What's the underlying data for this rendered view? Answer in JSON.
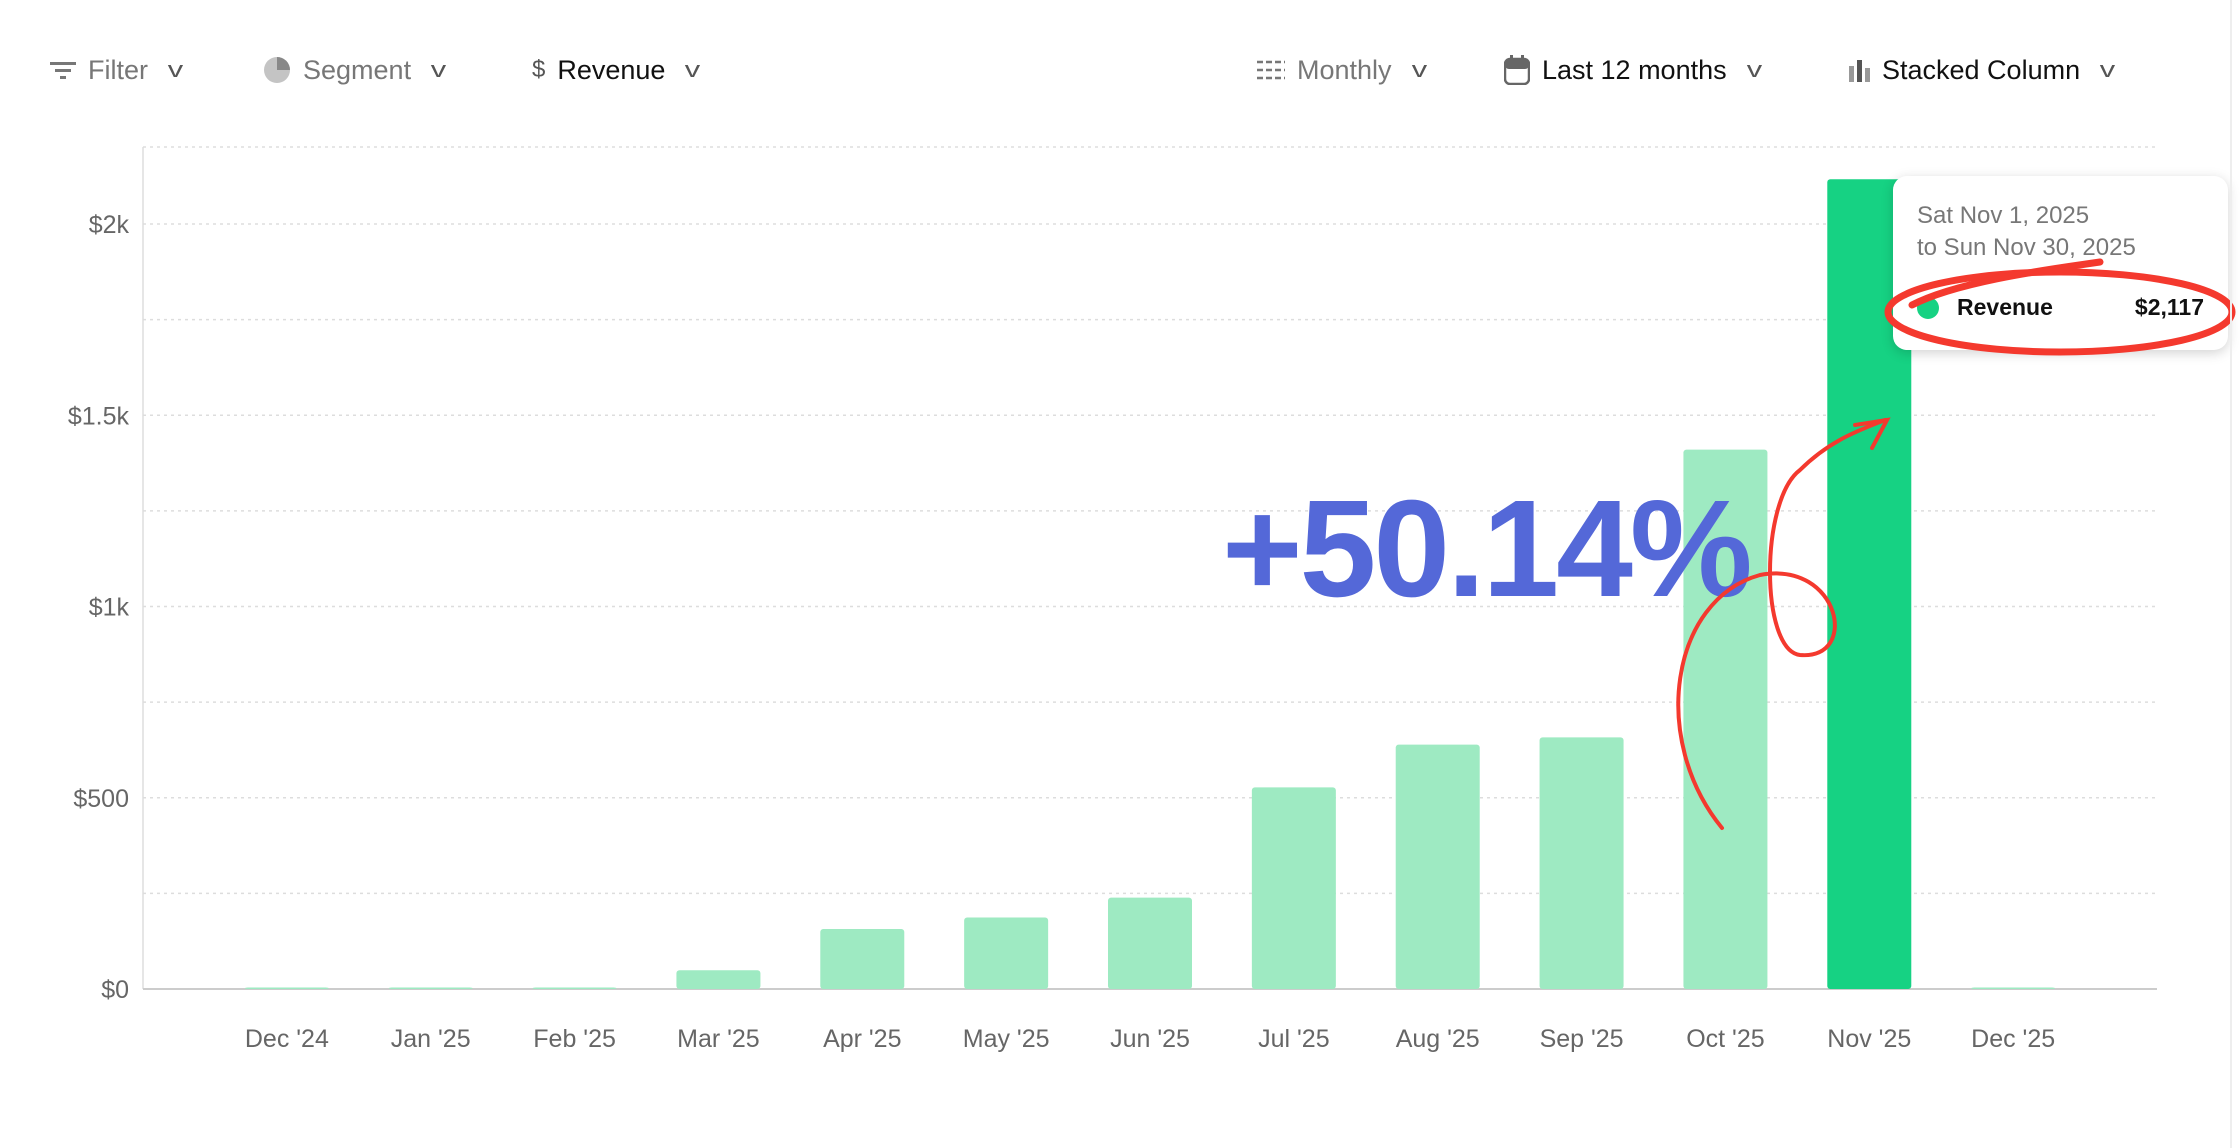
{
  "toolbar": {
    "filter": "Filter",
    "segment": "Segment",
    "metric": "Revenue",
    "interval": "Monthly",
    "range": "Last 12 months",
    "chart_type": "Stacked Column"
  },
  "tooltip": {
    "line1": "Sat Nov 1, 2025",
    "line2": "to Sun Nov 30, 2025",
    "series": "Revenue",
    "value": "$2,117"
  },
  "annotation": "+50.14%",
  "colors": {
    "bar": "#9eeac2",
    "highlight": "#16d283",
    "annotation": "#5468d8",
    "ink": "#f4392e"
  },
  "chart_data": {
    "type": "bar",
    "title": "",
    "xlabel": "",
    "ylabel": "Revenue",
    "categories": [
      "Dec '24",
      "Jan '25",
      "Feb '25",
      "Mar '25",
      "Apr '25",
      "May '25",
      "Jun '25",
      "Jul '25",
      "Aug '25",
      "Sep '25",
      "Oct '25",
      "Nov '25",
      "Dec '25"
    ],
    "series": [
      {
        "name": "Revenue",
        "values": [
          1,
          0,
          0,
          49,
          157,
          187,
          239,
          527,
          639,
          658,
          1410,
          2117,
          2
        ]
      }
    ],
    "highlighted": "Nov '25",
    "ylim": [
      0,
      2200
    ],
    "yticks": [
      0,
      500,
      1000,
      1500,
      2000
    ],
    "ytick_labels": [
      "$0",
      "$500",
      "$1k",
      "$1.5k",
      "$2k"
    ],
    "grid": true
  }
}
